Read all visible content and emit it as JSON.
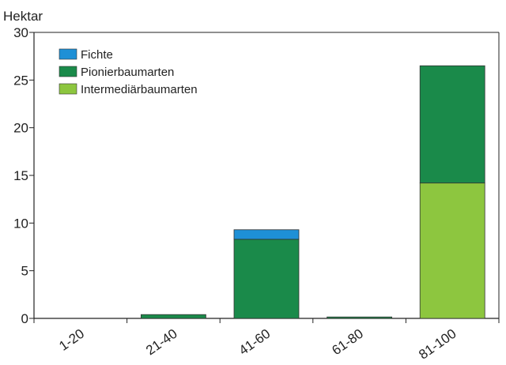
{
  "chart_data": {
    "type": "bar",
    "stacked": true,
    "ylabel": "Hektar",
    "ylim": [
      0,
      30
    ],
    "yticks": [
      0,
      5,
      10,
      15,
      20,
      25,
      30
    ],
    "categories": [
      "1-20",
      "21-40",
      "41-60",
      "61-80",
      "81-100"
    ],
    "series": [
      {
        "name": "Intermediärbaumarten",
        "color": "#8dc63f",
        "values": [
          0,
          0,
          0,
          0,
          14.2
        ]
      },
      {
        "name": "Pionierbaumarten",
        "color": "#1a8a4a",
        "values": [
          0,
          0.4,
          8.3,
          0.15,
          12.3
        ]
      },
      {
        "name": "Fichte",
        "color": "#1e90d6",
        "values": [
          0,
          0,
          1.0,
          0,
          0
        ]
      }
    ],
    "legend": {
      "position": "top-left",
      "order": [
        "Fichte",
        "Pionierbaumarten",
        "Intermediärbaumarten"
      ]
    },
    "grid": false
  }
}
